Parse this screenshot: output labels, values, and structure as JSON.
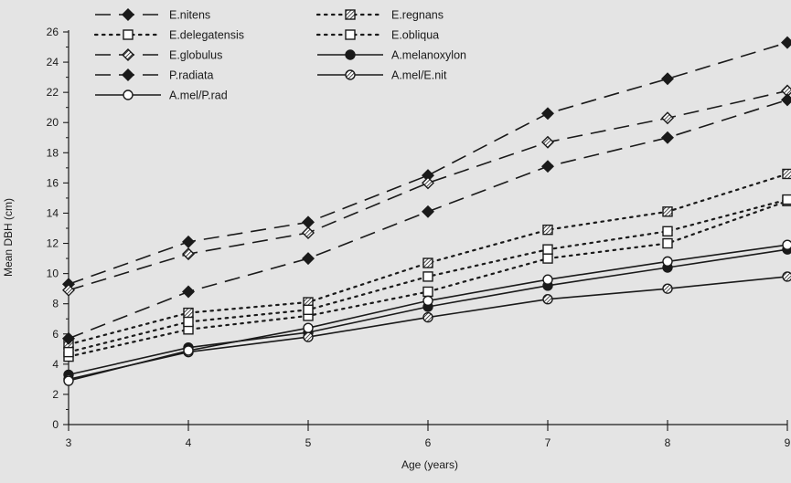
{
  "chart_data": {
    "type": "line",
    "xlabel": "Age (years)",
    "ylabel": "Mean DBH (cm)",
    "x": [
      3,
      4,
      5,
      6,
      7,
      8,
      9
    ],
    "xticks": [
      "3",
      "4",
      "5",
      "6",
      "7",
      "8",
      "9"
    ],
    "yticks": [
      "0",
      "2",
      "4",
      "6",
      "8",
      "10",
      "12",
      "14",
      "16",
      "18",
      "20",
      "22",
      "24",
      "26"
    ],
    "xlim": [
      3,
      9
    ],
    "ylim": [
      0,
      26
    ],
    "grid": false,
    "legend_position": "top-left",
    "series": [
      {
        "name": "E.nitens",
        "values": [
          9.3,
          12.1,
          13.4,
          16.5,
          20.6,
          22.9,
          25.3
        ],
        "line": "dashed",
        "marker": "diamond-filled"
      },
      {
        "name": "E.regnans",
        "values": [
          5.3,
          7.4,
          8.1,
          10.7,
          12.9,
          14.1,
          16.6
        ],
        "line": "dotted",
        "marker": "square-hatched"
      },
      {
        "name": "E.delegatensis",
        "values": [
          4.5,
          6.3,
          7.2,
          8.8,
          11.0,
          12.0,
          14.8
        ],
        "line": "dotted",
        "marker": "square-open"
      },
      {
        "name": "E.obliqua",
        "values": [
          4.8,
          6.8,
          7.6,
          9.8,
          11.6,
          12.8,
          14.9
        ],
        "line": "dotted",
        "marker": "square-open"
      },
      {
        "name": "E.globulus",
        "values": [
          8.9,
          11.3,
          12.7,
          16.0,
          18.7,
          20.3,
          22.1
        ],
        "line": "dashed",
        "marker": "diamond-hatched"
      },
      {
        "name": "A.melanoxylon",
        "values": [
          3.3,
          5.1,
          6.1,
          7.8,
          9.2,
          10.4,
          11.6
        ],
        "line": "solid",
        "marker": "circle-filled"
      },
      {
        "name": "P.radiata",
        "values": [
          5.7,
          8.8,
          11.0,
          14.1,
          17.1,
          19.0,
          21.5
        ],
        "line": "dashed",
        "marker": "diamond-filled"
      },
      {
        "name": "A.mel/E.nit",
        "values": [
          3.0,
          4.8,
          5.8,
          7.1,
          8.3,
          9.0,
          9.8
        ],
        "line": "solid",
        "marker": "circle-hatched"
      },
      {
        "name": "A.mel/P.rad",
        "values": [
          2.9,
          4.9,
          6.4,
          8.2,
          9.6,
          10.8,
          11.9
        ],
        "line": "solid",
        "marker": "circle-open"
      }
    ],
    "colors": {
      "background": "#e4e4e4",
      "ink": "#1a1a1a"
    }
  }
}
